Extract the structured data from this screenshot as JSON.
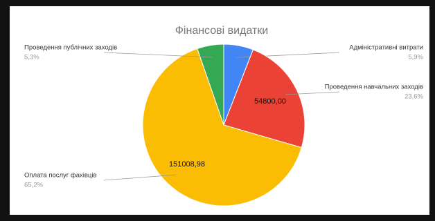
{
  "chart_data": {
    "type": "pie",
    "title": "Фінансові видатки",
    "categories": [
      "Адміністративні витрати",
      "Проведення навчальних заходів",
      "Оплата послуг фахівців",
      "Проведення публічних заходів"
    ],
    "values": [
      5.9,
      23.6,
      65.2,
      5.3
    ],
    "value_labels": [
      "5,9%",
      "23,6%",
      "65,2%",
      "5,3%"
    ],
    "inner_labels": [
      null,
      "54800,00",
      "151008,98",
      null
    ],
    "colors": [
      "#4285f4",
      "#ea4335",
      "#fbbc04",
      "#34a853"
    ]
  }
}
